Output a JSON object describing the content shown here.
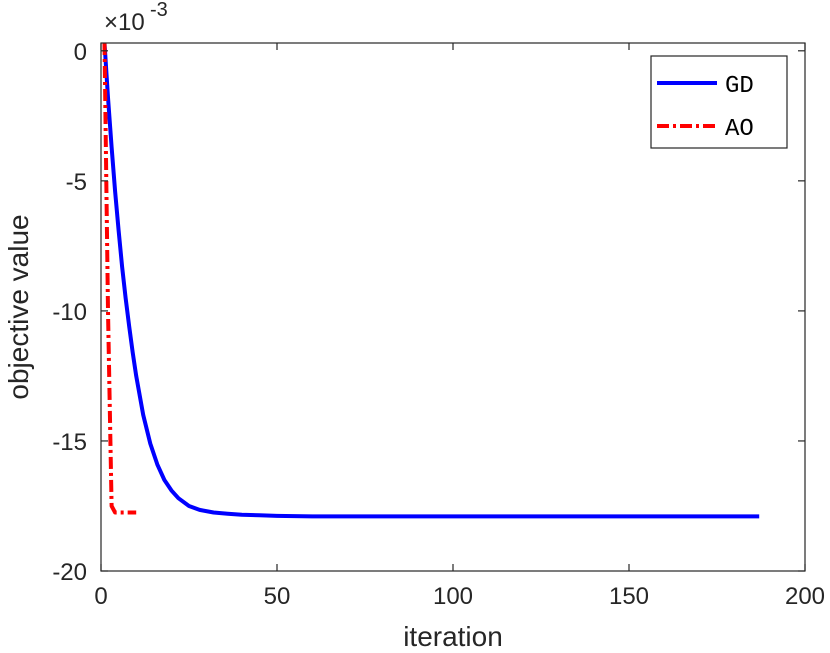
{
  "chart_data": {
    "type": "line",
    "title": "",
    "xlabel": "iteration",
    "ylabel": "objective value",
    "exponent_base": "×10",
    "exponent_power": "-3",
    "xlim": [
      0,
      200
    ],
    "ylim": [
      -20,
      0.3
    ],
    "xticks": [
      "0",
      "50",
      "100",
      "150",
      "200"
    ],
    "yticks": [
      "0",
      "-5",
      "-10",
      "-15",
      "-20"
    ],
    "grid": false,
    "legend_position": "top-right",
    "series": [
      {
        "name": "GD",
        "color": "#0000ff",
        "style": "solid",
        "x": [
          1,
          2,
          3,
          4,
          5,
          6,
          7,
          8,
          9,
          10,
          12,
          14,
          16,
          18,
          20,
          22,
          25,
          28,
          32,
          36,
          40,
          45,
          50,
          60,
          70,
          80,
          100,
          120,
          150,
          187
        ],
        "y": [
          0.3,
          -1.8,
          -3.7,
          -5.4,
          -6.9,
          -8.3,
          -9.5,
          -10.6,
          -11.6,
          -12.5,
          -14.0,
          -15.1,
          -15.9,
          -16.5,
          -16.9,
          -17.2,
          -17.5,
          -17.65,
          -17.75,
          -17.8,
          -17.84,
          -17.86,
          -17.88,
          -17.9,
          -17.9,
          -17.9,
          -17.9,
          -17.9,
          -17.9,
          -17.9
        ]
      },
      {
        "name": "AO",
        "color": "#ff0000",
        "style": "dashdot",
        "x": [
          1,
          2,
          3,
          4,
          5,
          6,
          7,
          8,
          9,
          10
        ],
        "y": [
          0.3,
          -10.0,
          -17.5,
          -17.75,
          -17.75,
          -17.75,
          -17.75,
          -17.75,
          -17.75,
          -17.75
        ]
      }
    ]
  }
}
